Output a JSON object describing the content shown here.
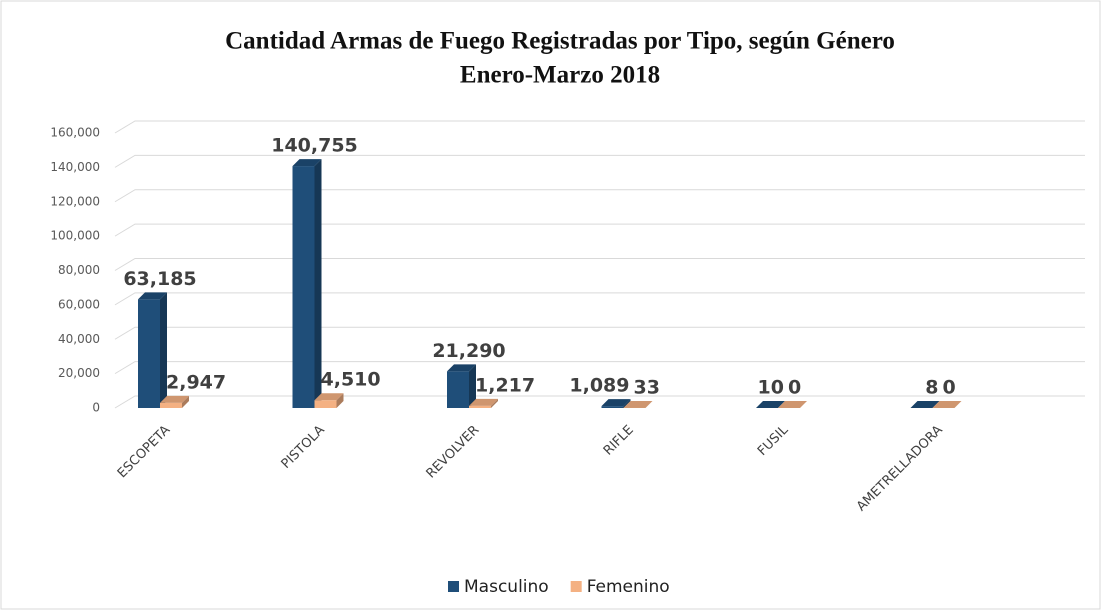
{
  "chart_data": {
    "type": "bar3d",
    "title": "Cantidad Armas de Fuego Registradas por Tipo, según Género",
    "subtitle": "Enero-Marzo 2018",
    "categories": [
      "ESCOPETA",
      "PISTOLA",
      "REVOLVER",
      "RIFLE",
      "FUSIL",
      "AMETRELLADORA"
    ],
    "series": [
      {
        "name": "Masculino",
        "color": "#1f4e79",
        "values": [
          63185,
          140755,
          21290,
          1089,
          10,
          8
        ],
        "value_labels": [
          "63,185",
          "140,755",
          "21,290",
          "1,089",
          "10",
          "8"
        ]
      },
      {
        "name": "Femenino",
        "color": "#f4b183",
        "values": [
          2947,
          4510,
          1217,
          33,
          0,
          0
        ],
        "value_labels": [
          "2,947",
          "4,510",
          "1,217",
          "33",
          "0",
          "0"
        ]
      }
    ],
    "ylim": [
      0,
      160000
    ],
    "yticks": [
      0,
      {
        "value": 20000,
        "label": "20,000"
      },
      {
        "value": 40000,
        "label": "40,000"
      },
      {
        "value": 60000,
        "label": "60,000"
      },
      {
        "value": 80000,
        "label": "80,000"
      },
      {
        "value": 100000,
        "label": "100,000"
      },
      {
        "value": 120000,
        "label": "120,000"
      },
      {
        "value": 140000,
        "label": "140,000"
      },
      {
        "value": 160000,
        "label": "160,000"
      }
    ],
    "grid": true,
    "legend": "bottom"
  }
}
